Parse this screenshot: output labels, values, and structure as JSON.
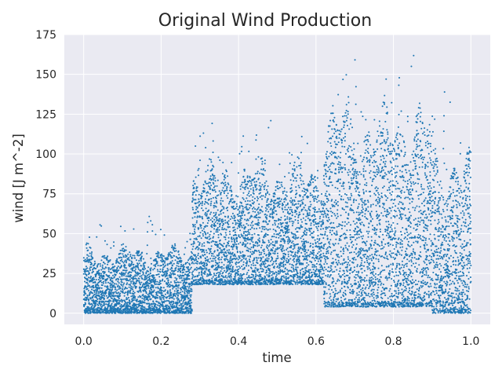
{
  "chart_data": {
    "type": "scatter",
    "title": "Original Wind Production",
    "xlabel": "time",
    "ylabel": "wind [J m^-2]",
    "xlim": [
      -0.05,
      1.05
    ],
    "ylim": [
      -7,
      175
    ],
    "xticks": [
      0.0,
      0.2,
      0.4,
      0.6,
      0.8,
      1.0
    ],
    "xtick_labels": [
      "0.0",
      "0.2",
      "0.4",
      "0.6",
      "0.8",
      "1.0"
    ],
    "yticks": [
      0,
      25,
      50,
      75,
      100,
      125,
      150,
      175
    ],
    "ytick_labels": [
      "0",
      "25",
      "50",
      "75",
      "100",
      "125",
      "150",
      "175"
    ],
    "grid": true,
    "marker_color": "#1f77b4",
    "background": "#eaeaf2",
    "segments": [
      {
        "x": [
          0.0,
          0.28
        ],
        "y_min": 0,
        "y_typical_max": 45,
        "y_peak": 65
      },
      {
        "x": [
          0.28,
          0.62
        ],
        "y_min": 18,
        "y_typical_max": 100,
        "y_peak": 125
      },
      {
        "x": [
          0.62,
          0.9
        ],
        "y_min": 4,
        "y_typical_max": 140,
        "y_peak": 168
      },
      {
        "x": [
          0.9,
          1.0
        ],
        "y_min": 0,
        "y_typical_max": 110,
        "y_peak": 160
      }
    ],
    "n_points": 9000
  }
}
